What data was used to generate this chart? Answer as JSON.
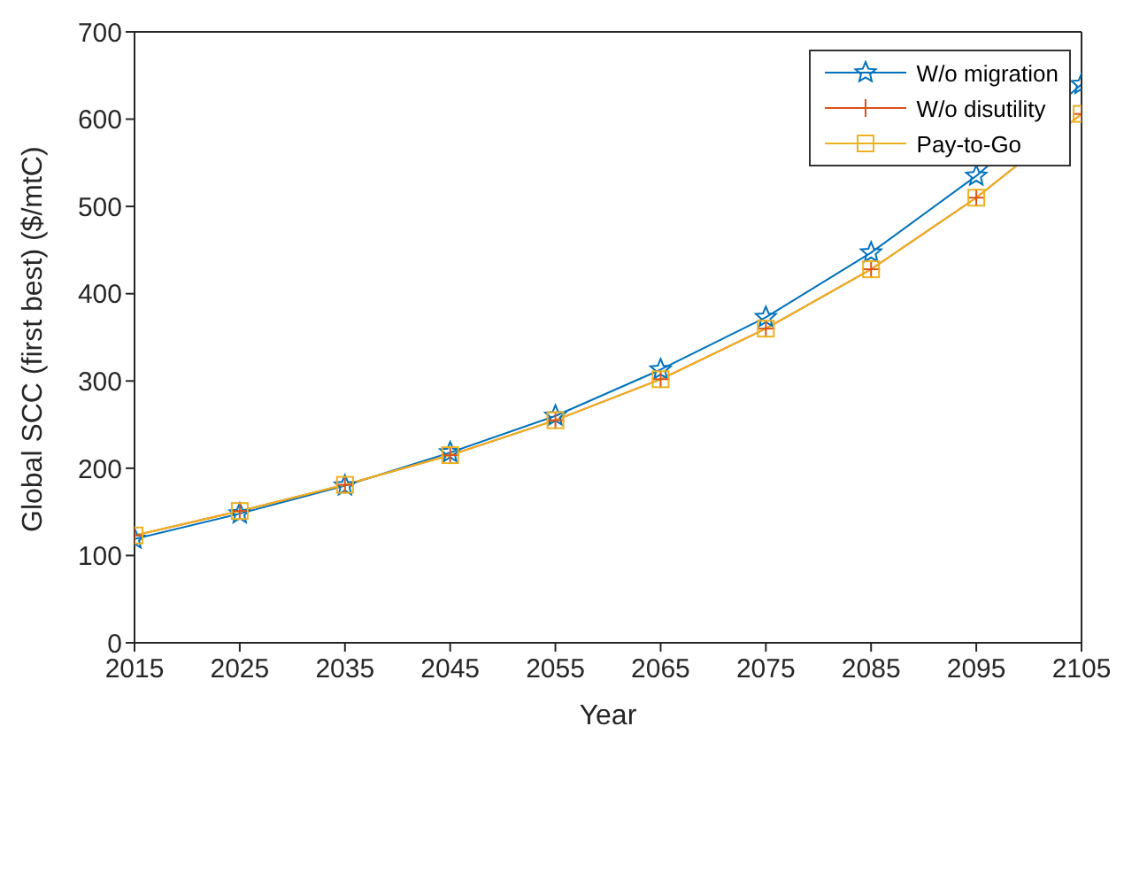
{
  "chart_data": {
    "type": "line",
    "xlabel": "Year",
    "ylabel": "Global SCC (first best) ($/mtC)",
    "x": [
      2015,
      2025,
      2035,
      2045,
      2055,
      2065,
      2075,
      2085,
      2095,
      2105
    ],
    "series": [
      {
        "name": "W/o migration",
        "color": "#0072bd",
        "marker": "star",
        "values": [
          119,
          148,
          180,
          218,
          260,
          313,
          373,
          447,
          535,
          640
        ]
      },
      {
        "name": "W/o disutility",
        "color": "#d95319",
        "marker": "cross",
        "values": [
          123,
          151,
          181,
          215,
          255,
          302,
          360,
          428,
          510,
          606
        ]
      },
      {
        "name": "Pay-to-Go",
        "color": "#edb120",
        "marker": "square",
        "values": [
          123,
          151,
          181,
          215,
          255,
          302,
          360,
          428,
          510,
          606
        ]
      }
    ],
    "xlim": [
      2015,
      2105
    ],
    "xticks": [
      2015,
      2025,
      2035,
      2045,
      2055,
      2065,
      2075,
      2085,
      2095,
      2105
    ],
    "ylim": [
      0,
      700
    ],
    "yticks": [
      0,
      100,
      200,
      300,
      400,
      500,
      600,
      700
    ],
    "grid": false,
    "legend": "top right"
  }
}
